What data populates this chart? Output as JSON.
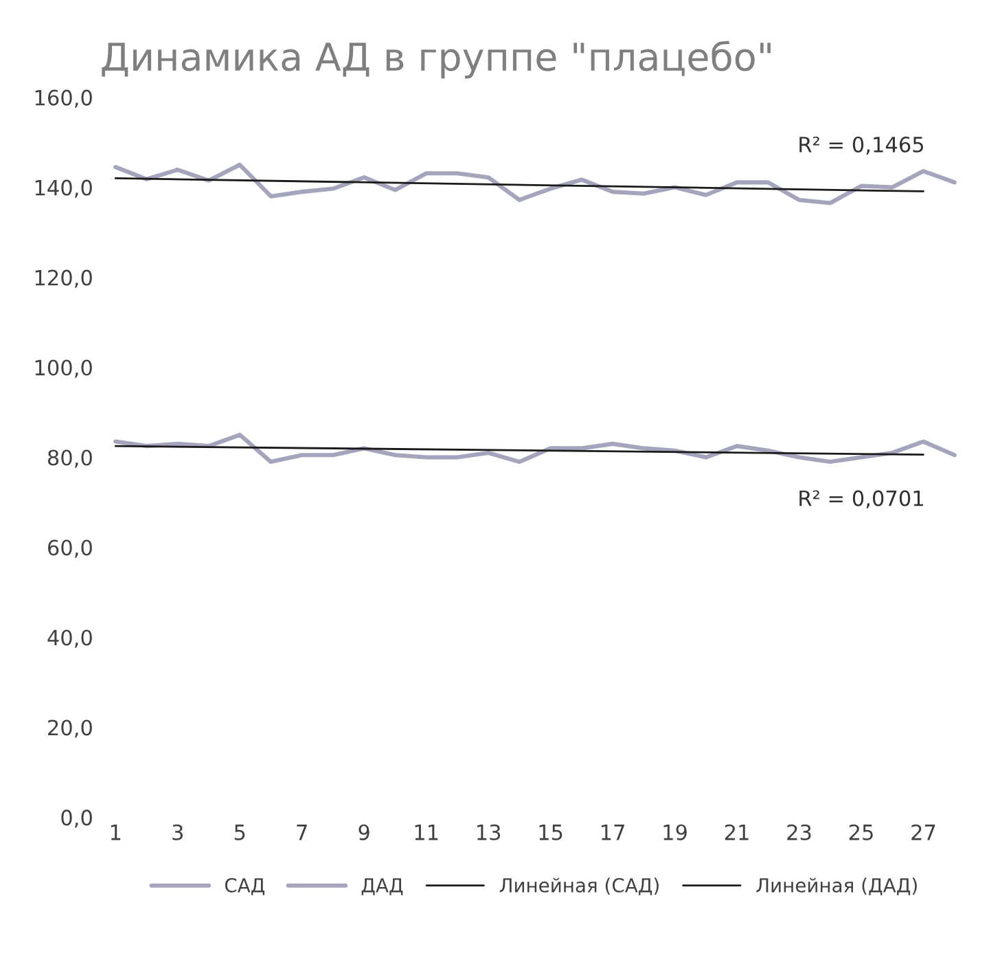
{
  "chart_data": {
    "type": "line",
    "title": "Динамика АД в группе \"плацебо\"",
    "categories": [
      "1",
      null,
      "3",
      null,
      "5",
      null,
      "7",
      null,
      "9",
      null,
      "11",
      null,
      "13",
      null,
      "15",
      null,
      "17",
      null,
      "19",
      null,
      "21",
      null,
      "23",
      null,
      "25",
      null,
      "27",
      null
    ],
    "series": [
      {
        "name": "САД",
        "color": "#a4a4bc",
        "values": [
          144.5,
          141.8,
          143.9,
          141.5,
          145.0,
          138.0,
          139.0,
          139.7,
          142.2,
          139.4,
          143.1,
          143.1,
          142.2,
          137.2,
          139.7,
          141.7,
          139.0,
          138.6,
          140.0,
          138.3,
          141.1,
          141.1,
          137.2,
          136.5,
          140.3,
          140.0,
          143.6,
          141.1
        ]
      },
      {
        "name": "ДАД",
        "color": "#a4a4bc",
        "values": [
          83.5,
          82.5,
          83.0,
          82.5,
          85.0,
          79.0,
          80.5,
          80.5,
          82.0,
          80.5,
          80.0,
          80.0,
          81.0,
          79.0,
          82.0,
          82.0,
          83.0,
          82.0,
          81.5,
          80.0,
          82.5,
          81.5,
          80.0,
          79.0,
          80.0,
          81.0,
          83.5,
          80.5
        ]
      },
      {
        "name": "Линейная (САД)",
        "type": "line",
        "color": "#1a1a1a",
        "x": [
          "1",
          "27"
        ],
        "values": [
          142.0,
          139.1
        ]
      },
      {
        "name": "Линейная (ДАД)",
        "type": "line",
        "color": "#1a1a1a",
        "x": [
          "1",
          "27"
        ],
        "values": [
          82.5,
          80.6
        ]
      }
    ],
    "ylim": [
      0,
      160
    ],
    "yticks": [
      {
        "value": 0,
        "label": "0,0"
      },
      {
        "value": 20,
        "label": "20,0"
      },
      {
        "value": 40,
        "label": "40,0"
      },
      {
        "value": 60,
        "label": "60,0"
      },
      {
        "value": 80,
        "label": "80,0"
      },
      {
        "value": 100,
        "label": "100,0"
      },
      {
        "value": 120,
        "label": "120,0"
      },
      {
        "value": 140,
        "label": "140,0"
      },
      {
        "value": 160,
        "label": "160,0"
      }
    ],
    "annotations": [
      "R² = 0,1465",
      "R² = 0,0701"
    ],
    "legend": "bottom",
    "marker": "none",
    "line_style": "solid"
  }
}
